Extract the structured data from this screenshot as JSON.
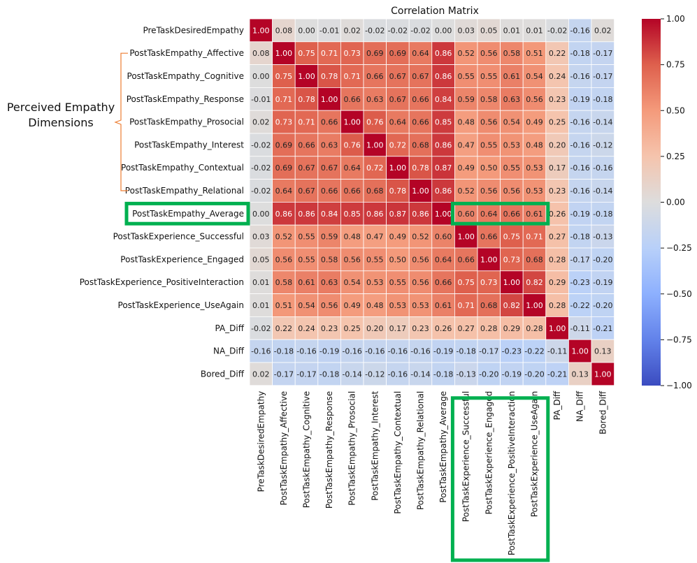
{
  "chart_data": {
    "type": "heatmap",
    "title": "Correlation Matrix",
    "variables": [
      "PreTaskDesiredEmpathy",
      "PostTaskEmpathy_Affective",
      "PostTaskEmpathy_Cognitive",
      "PostTaskEmpathy_Response",
      "PostTaskEmpathy_Prosocial",
      "PostTaskEmpathy_Interest",
      "PostTaskEmpathy_Contextual",
      "PostTaskEmpathy_Relational",
      "PostTaskEmpathy_Average",
      "PostTaskExperience_Successful",
      "PostTaskExperience_Engaged",
      "PostTaskExperience_PositiveInteraction",
      "PostTaskExperience_UseAgain",
      "PA_Diff",
      "NA_Diff",
      "Bored_Diff"
    ],
    "values": [
      [
        1.0,
        0.08,
        0.0,
        -0.01,
        0.02,
        -0.02,
        -0.02,
        -0.02,
        0.0,
        0.03,
        0.05,
        0.01,
        0.01,
        -0.02,
        -0.16,
        0.02
      ],
      [
        0.08,
        1.0,
        0.75,
        0.71,
        0.73,
        0.69,
        0.69,
        0.64,
        0.86,
        0.52,
        0.56,
        0.58,
        0.51,
        0.22,
        -0.18,
        -0.17
      ],
      [
        0.0,
        0.75,
        1.0,
        0.78,
        0.71,
        0.66,
        0.67,
        0.67,
        0.86,
        0.55,
        0.55,
        0.61,
        0.54,
        0.24,
        -0.16,
        -0.17
      ],
      [
        -0.01,
        0.71,
        0.78,
        1.0,
        0.66,
        0.63,
        0.67,
        0.66,
        0.84,
        0.59,
        0.58,
        0.63,
        0.56,
        0.23,
        -0.19,
        -0.18
      ],
      [
        0.02,
        0.73,
        0.71,
        0.66,
        1.0,
        0.76,
        0.64,
        0.66,
        0.85,
        0.48,
        0.56,
        0.54,
        0.49,
        0.25,
        -0.16,
        -0.14
      ],
      [
        -0.02,
        0.69,
        0.66,
        0.63,
        0.76,
        1.0,
        0.72,
        0.68,
        0.86,
        0.47,
        0.55,
        0.53,
        0.48,
        0.2,
        -0.16,
        -0.12
      ],
      [
        -0.02,
        0.69,
        0.67,
        0.67,
        0.64,
        0.72,
        1.0,
        0.78,
        0.87,
        0.49,
        0.5,
        0.55,
        0.53,
        0.17,
        -0.16,
        -0.16
      ],
      [
        -0.02,
        0.64,
        0.67,
        0.66,
        0.66,
        0.68,
        0.78,
        1.0,
        0.86,
        0.52,
        0.56,
        0.56,
        0.53,
        0.23,
        -0.16,
        -0.14
      ],
      [
        0.0,
        0.86,
        0.86,
        0.84,
        0.85,
        0.86,
        0.87,
        0.86,
        1.0,
        0.6,
        0.64,
        0.66,
        0.61,
        0.26,
        -0.19,
        -0.18
      ],
      [
        0.03,
        0.52,
        0.55,
        0.59,
        0.48,
        0.47,
        0.49,
        0.52,
        0.6,
        1.0,
        0.66,
        0.75,
        0.71,
        0.27,
        -0.18,
        -0.13
      ],
      [
        0.05,
        0.56,
        0.55,
        0.58,
        0.56,
        0.55,
        0.5,
        0.56,
        0.64,
        0.66,
        1.0,
        0.73,
        0.68,
        0.28,
        -0.17,
        -0.2
      ],
      [
        0.01,
        0.58,
        0.61,
        0.63,
        0.54,
        0.53,
        0.55,
        0.56,
        0.66,
        0.75,
        0.73,
        1.0,
        0.82,
        0.29,
        -0.23,
        -0.19
      ],
      [
        0.01,
        0.51,
        0.54,
        0.56,
        0.49,
        0.48,
        0.53,
        0.53,
        0.61,
        0.71,
        0.68,
        0.82,
        1.0,
        0.28,
        -0.22,
        -0.2
      ],
      [
        -0.02,
        0.22,
        0.24,
        0.23,
        0.25,
        0.2,
        0.17,
        0.23,
        0.26,
        0.27,
        0.28,
        0.29,
        0.28,
        1.0,
        -0.11,
        -0.21
      ],
      [
        -0.16,
        -0.18,
        -0.16,
        -0.19,
        -0.16,
        -0.16,
        -0.16,
        -0.16,
        -0.19,
        -0.18,
        -0.17,
        -0.23,
        -0.22,
        -0.11,
        1.0,
        0.13
      ],
      [
        0.02,
        -0.17,
        -0.17,
        -0.18,
        -0.14,
        -0.12,
        -0.16,
        -0.14,
        -0.18,
        -0.13,
        -0.2,
        -0.19,
        -0.2,
        -0.21,
        0.13,
        1.0
      ]
    ],
    "value_range": [
      -1.0,
      1.0
    ],
    "colormap": "coolwarm",
    "colorbar_ticks": [
      "1.00",
      "0.75",
      "0.50",
      "0.25",
      "0.00",
      "−0.25",
      "−0.50",
      "−0.75",
      "−1.00"
    ],
    "colorbar_tick_values": [
      1.0,
      0.75,
      0.5,
      0.25,
      0.0,
      -0.25,
      -0.5,
      -0.75,
      -1.0
    ],
    "annotations": {
      "bracket_label": "Perceived Empathy Dimensions",
      "bracket_label_lines": [
        "Perceived Empathy",
        "Dimensions"
      ],
      "bracket_rows": [
        "PostTaskEmpathy_Affective",
        "PostTaskEmpathy_Relational"
      ],
      "highlight_color": "#00b050",
      "highlight_row_label": "PostTaskEmpathy_Average",
      "highlight_cells_row": "PostTaskEmpathy_Average",
      "highlight_cells_cols": [
        "PostTaskExperience_Successful",
        "PostTaskExperience_UseAgain"
      ],
      "highlight_col_labels": [
        "PostTaskExperience_Successful",
        "PostTaskExperience_UseAgain"
      ]
    }
  }
}
